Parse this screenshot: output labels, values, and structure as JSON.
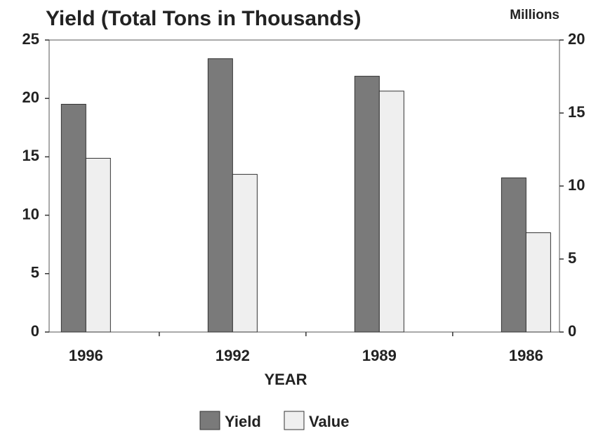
{
  "chart_data": {
    "type": "bar",
    "title": "Yield (Total Tons in Thousands)",
    "y2_label": "Millions",
    "x_label": "YEAR",
    "categories": [
      "1996",
      "1992",
      "1989",
      "1986"
    ],
    "series": [
      {
        "name": "Yield",
        "color": "#7a7a7a",
        "values": [
          19.5,
          23.4,
          21.9,
          13.2
        ]
      },
      {
        "name": "Value",
        "color": "#efefef",
        "axis": "y2",
        "values": [
          11.9,
          10.8,
          16.5,
          6.8
        ]
      }
    ],
    "ylim": [
      0,
      25
    ],
    "yticks": [
      0,
      5,
      10,
      15,
      20,
      25
    ],
    "y2lim": [
      0,
      20
    ],
    "y2ticks": [
      0,
      5,
      10,
      15,
      20
    ],
    "legend": "bottom"
  }
}
